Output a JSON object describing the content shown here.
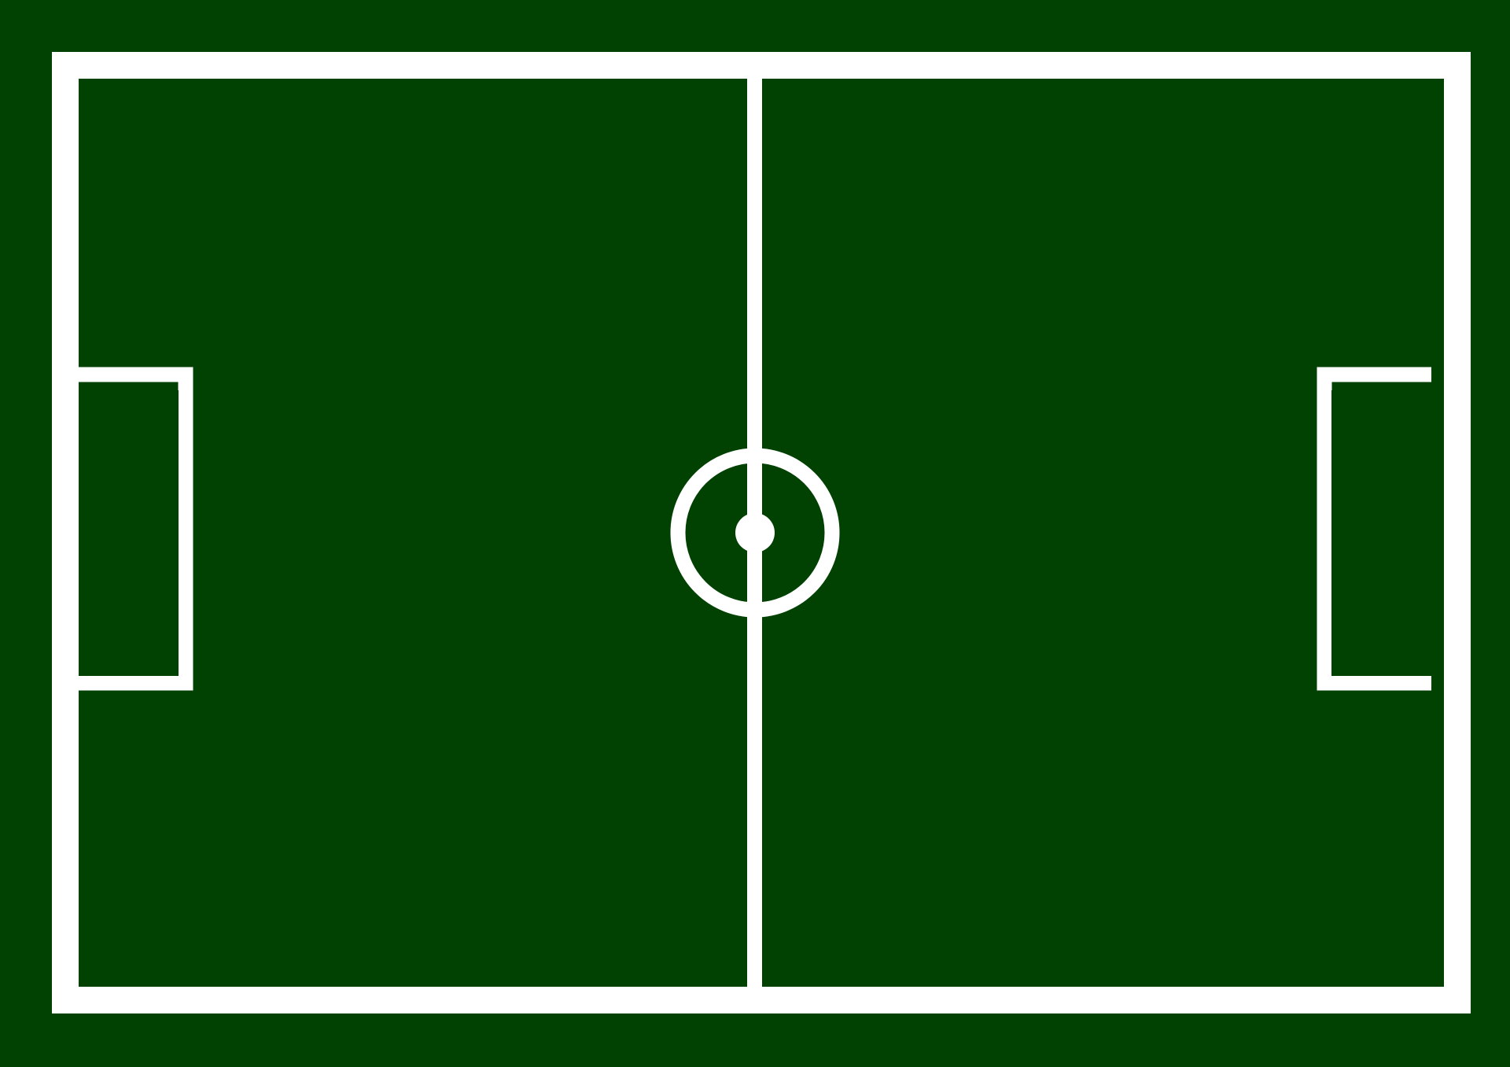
{
  "pitch": {
    "grass_color": "#014203",
    "line_color": "#ffffff"
  }
}
